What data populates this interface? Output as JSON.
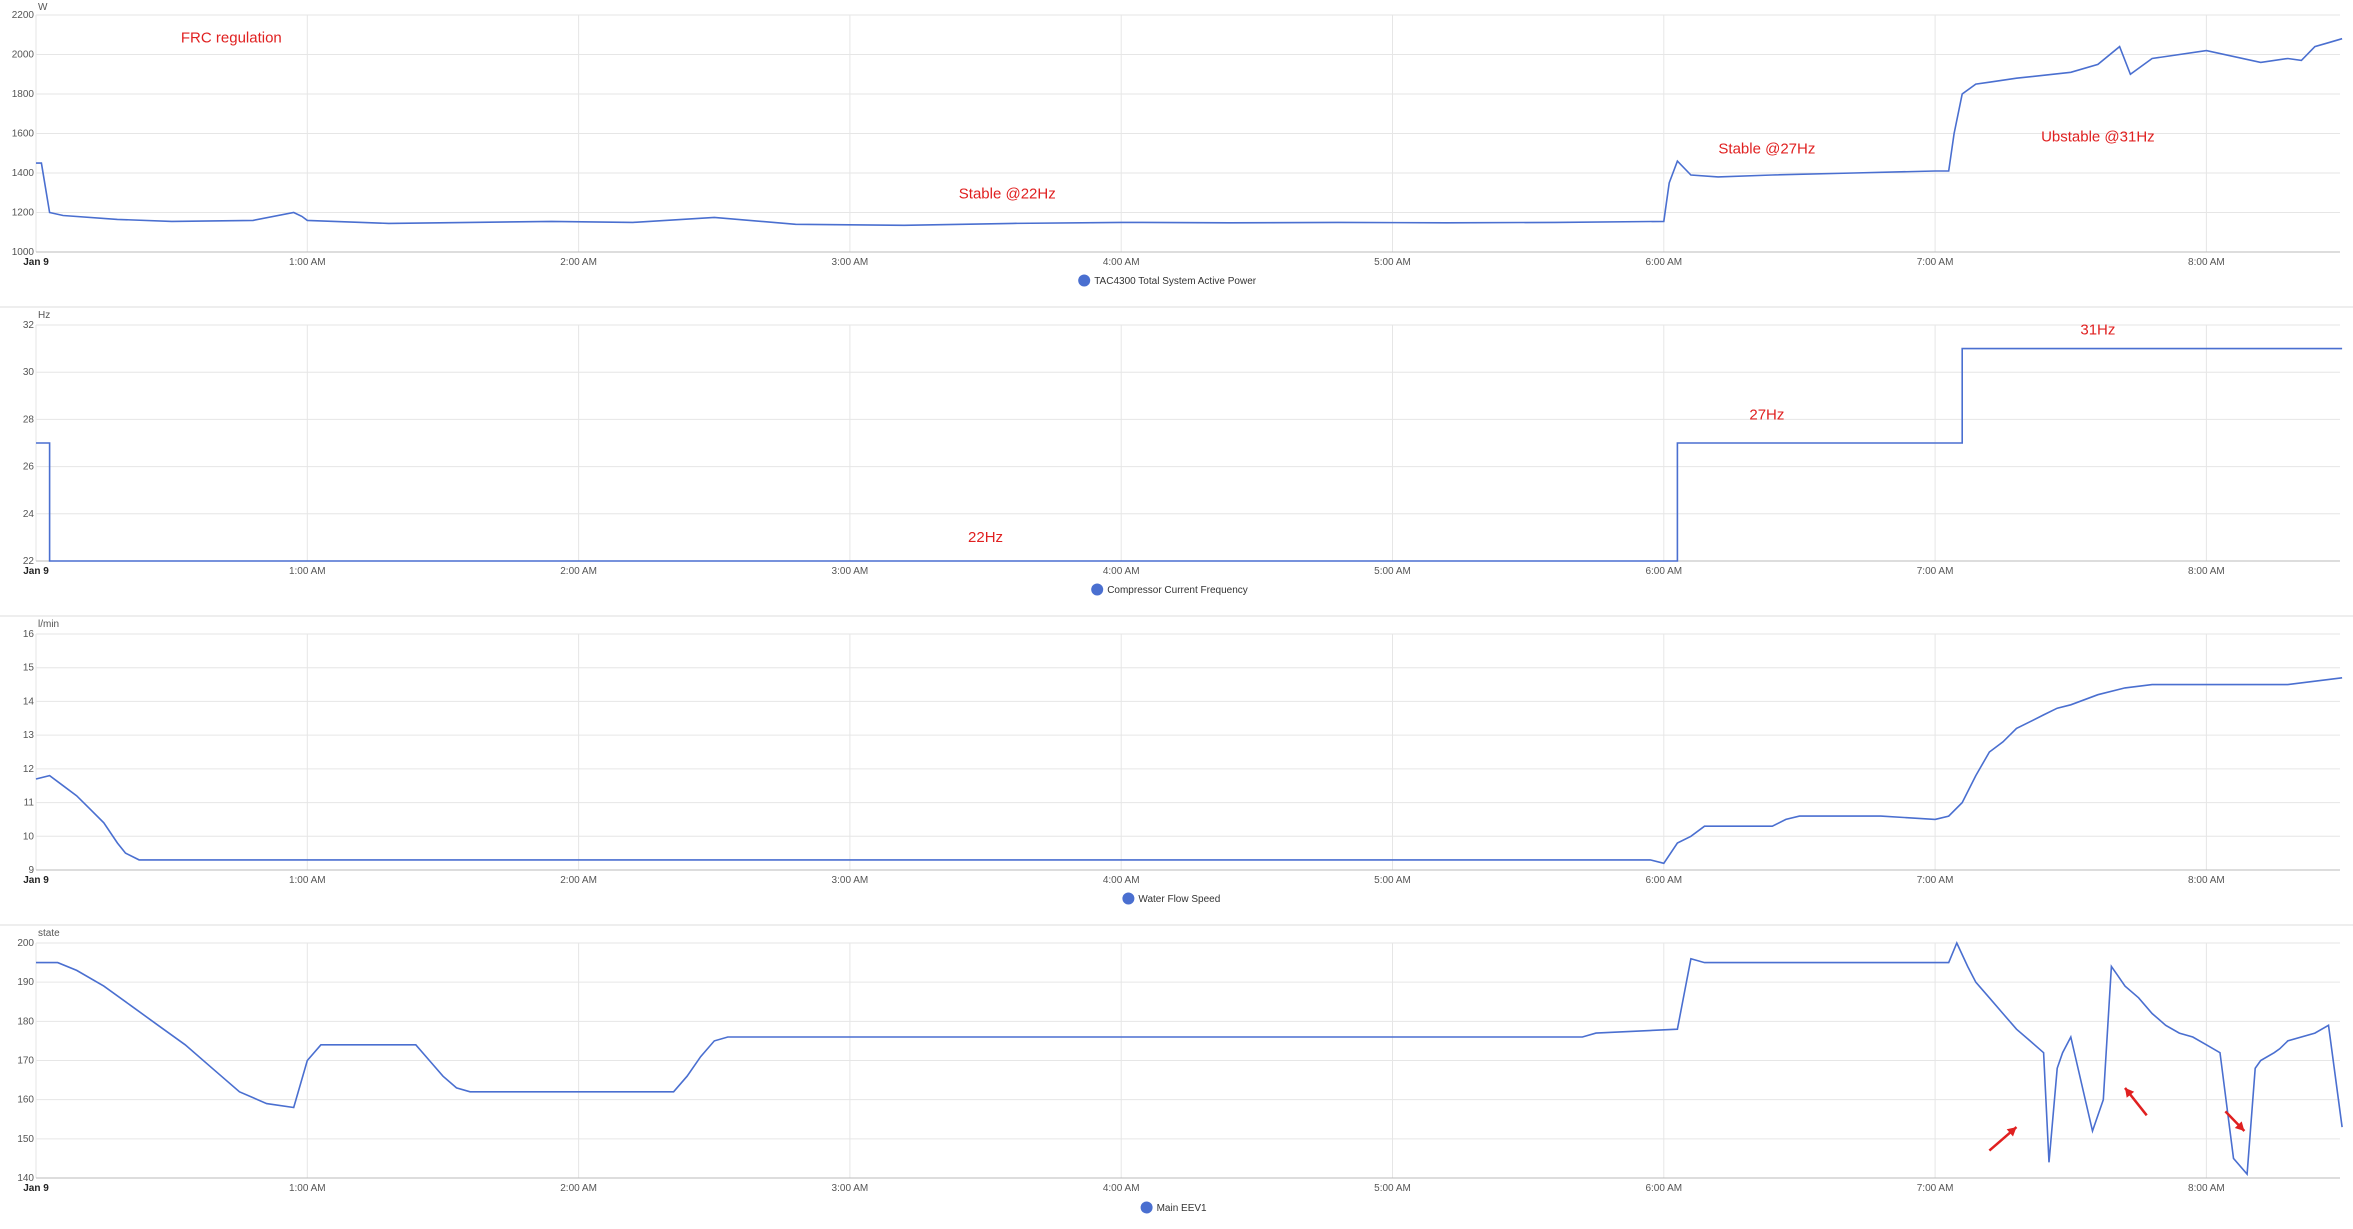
{
  "series_color": "#4a6fd0",
  "grid_color": "#e6e6e6",
  "annotation_color": "#e02020",
  "chart_data": [
    {
      "type": "line",
      "unit": "W",
      "ylim": [
        1000,
        2200
      ],
      "yticks": [
        1000,
        1200,
        1400,
        1600,
        1800,
        2000,
        2200
      ],
      "x_ticks": [
        "Jan 9",
        "1:00 AM",
        "2:00 AM",
        "3:00 AM",
        "4:00 AM",
        "5:00 AM",
        "6:00 AM",
        "7:00 AM",
        "8:00 AM"
      ],
      "legend": "TAC4300 Total System Active Power",
      "series": [
        {
          "name": "TAC4300 Total System Active Power",
          "x": [
            0,
            0.02,
            0.05,
            0.1,
            0.3,
            0.5,
            0.8,
            0.95,
            0.98,
            1.0,
            1.3,
            1.6,
            1.9,
            2.2,
            2.5,
            2.8,
            3.2,
            3.6,
            4.0,
            4.4,
            4.8,
            5.2,
            5.6,
            6.0,
            6.02,
            6.05,
            6.1,
            6.2,
            6.4,
            6.7,
            7.0,
            7.05,
            7.07,
            7.1,
            7.15,
            7.2,
            7.3,
            7.5,
            7.6,
            7.68,
            7.72,
            7.8,
            8.0,
            8.2,
            8.3,
            8.35,
            8.4,
            8.45,
            8.5
          ],
          "y": [
            1450,
            1450,
            1200,
            1185,
            1165,
            1155,
            1160,
            1200,
            1180,
            1160,
            1145,
            1150,
            1155,
            1150,
            1175,
            1140,
            1135,
            1145,
            1150,
            1148,
            1150,
            1148,
            1150,
            1155,
            1350,
            1460,
            1390,
            1380,
            1390,
            1400,
            1410,
            1410,
            1600,
            1800,
            1850,
            1860,
            1880,
            1910,
            1950,
            2040,
            1900,
            1980,
            2020,
            1960,
            1980,
            1970,
            2040,
            2060,
            2080
          ]
        }
      ],
      "annotations": [
        {
          "text": "FRC regulation",
          "x": 0.72,
          "y": 2060
        },
        {
          "text": "Stable @22Hz",
          "x": 3.58,
          "y": 1270
        },
        {
          "text": "Stable @27Hz",
          "x": 6.38,
          "y": 1500
        },
        {
          "text": "Ubstable @31Hz",
          "x": 7.6,
          "y": 1560
        }
      ]
    },
    {
      "type": "line",
      "unit": "Hz",
      "ylim": [
        22,
        32
      ],
      "yticks": [
        22,
        24,
        26,
        28,
        30,
        32
      ],
      "x_ticks": [
        "Jan 9",
        "1:00 AM",
        "2:00 AM",
        "3:00 AM",
        "4:00 AM",
        "5:00 AM",
        "6:00 AM",
        "7:00 AM",
        "8:00 AM"
      ],
      "legend": "Compressor Current Frequency",
      "series": [
        {
          "name": "Compressor Current Frequency",
          "x": [
            0,
            0.05,
            0.05,
            6.05,
            6.05,
            7.1,
            7.1,
            8.5
          ],
          "y": [
            27,
            27,
            22,
            22,
            27,
            27,
            31,
            31
          ]
        }
      ],
      "annotations": [
        {
          "text": "22Hz",
          "x": 3.5,
          "y": 22.8
        },
        {
          "text": "27Hz",
          "x": 6.38,
          "y": 28
        },
        {
          "text": "31Hz",
          "x": 7.6,
          "y": 31.6
        }
      ]
    },
    {
      "type": "line",
      "unit": "l/min",
      "ylim": [
        9,
        16
      ],
      "yticks": [
        9,
        10,
        11,
        12,
        13,
        14,
        15,
        16
      ],
      "x_ticks": [
        "Jan 9",
        "1:00 AM",
        "2:00 AM",
        "3:00 AM",
        "4:00 AM",
        "5:00 AM",
        "6:00 AM",
        "7:00 AM",
        "8:00 AM"
      ],
      "legend": "Water Flow Speed",
      "series": [
        {
          "name": "Water Flow Speed",
          "x": [
            0,
            0.05,
            0.1,
            0.15,
            0.2,
            0.25,
            0.3,
            0.33,
            0.38,
            0.45,
            0.6,
            1.0,
            1.5,
            2.0,
            2.5,
            3.0,
            3.5,
            4.0,
            4.5,
            5.0,
            5.5,
            5.95,
            6.0,
            6.05,
            6.1,
            6.15,
            6.2,
            6.3,
            6.4,
            6.45,
            6.5,
            6.6,
            6.8,
            7.0,
            7.05,
            7.1,
            7.15,
            7.2,
            7.25,
            7.3,
            7.35,
            7.4,
            7.45,
            7.5,
            7.6,
            7.7,
            7.8,
            7.9,
            8.0,
            8.1,
            8.2,
            8.3,
            8.4,
            8.5
          ],
          "y": [
            11.7,
            11.8,
            11.5,
            11.2,
            10.8,
            10.4,
            9.8,
            9.5,
            9.3,
            9.3,
            9.3,
            9.3,
            9.3,
            9.3,
            9.3,
            9.3,
            9.3,
            9.3,
            9.3,
            9.3,
            9.3,
            9.3,
            9.2,
            9.8,
            10.0,
            10.3,
            10.3,
            10.3,
            10.3,
            10.5,
            10.6,
            10.6,
            10.6,
            10.5,
            10.6,
            11.0,
            11.8,
            12.5,
            12.8,
            13.2,
            13.4,
            13.6,
            13.8,
            13.9,
            14.2,
            14.4,
            14.5,
            14.5,
            14.5,
            14.5,
            14.5,
            14.5,
            14.6,
            14.7
          ]
        }
      ],
      "annotations": []
    },
    {
      "type": "line",
      "unit": "state",
      "ylim": [
        140,
        200
      ],
      "yticks": [
        140,
        150,
        160,
        170,
        180,
        190,
        200
      ],
      "x_ticks": [
        "Jan 9",
        "1:00 AM",
        "2:00 AM",
        "3:00 AM",
        "4:00 AM",
        "5:00 AM",
        "6:00 AM",
        "7:00 AM",
        "8:00 AM"
      ],
      "legend": "Main EEV1",
      "series": [
        {
          "name": "Main EEV1",
          "x": [
            0,
            0.08,
            0.15,
            0.25,
            0.35,
            0.45,
            0.55,
            0.65,
            0.75,
            0.85,
            0.95,
            1.0,
            1.05,
            1.4,
            1.45,
            1.5,
            1.55,
            1.6,
            2.35,
            2.4,
            2.45,
            2.5,
            2.55,
            5.7,
            5.75,
            6.05,
            6.1,
            6.15,
            7.05,
            7.08,
            7.12,
            7.15,
            7.2,
            7.25,
            7.3,
            7.35,
            7.4,
            7.42,
            7.45,
            7.47,
            7.5,
            7.58,
            7.62,
            7.65,
            7.67,
            7.7,
            7.75,
            7.8,
            7.85,
            7.9,
            7.95,
            8.0,
            8.05,
            8.1,
            8.15,
            8.18,
            8.2,
            8.25,
            8.27,
            8.3,
            8.4,
            8.45,
            8.5
          ],
          "y": [
            195,
            195,
            193,
            189,
            184,
            179,
            174,
            168,
            162,
            159,
            158,
            170,
            174,
            174,
            170,
            166,
            163,
            162,
            162,
            166,
            171,
            175,
            176,
            176,
            177,
            178,
            196,
            195,
            195,
            200,
            194,
            190,
            186,
            182,
            178,
            175,
            172,
            144,
            168,
            172,
            176,
            152,
            160,
            194,
            192,
            189,
            186,
            182,
            179,
            177,
            176,
            174,
            172,
            145,
            141,
            168,
            170,
            172,
            173,
            175,
            177,
            179,
            153
          ]
        }
      ],
      "annotations": [],
      "arrows": [
        {
          "x1": 7.2,
          "y1": 147,
          "x2": 7.3,
          "y2": 153
        },
        {
          "x1": 7.78,
          "y1": 156,
          "x2": 7.7,
          "y2": 163
        },
        {
          "x1": 8.07,
          "y1": 157,
          "x2": 8.14,
          "y2": 152
        }
      ]
    }
  ]
}
